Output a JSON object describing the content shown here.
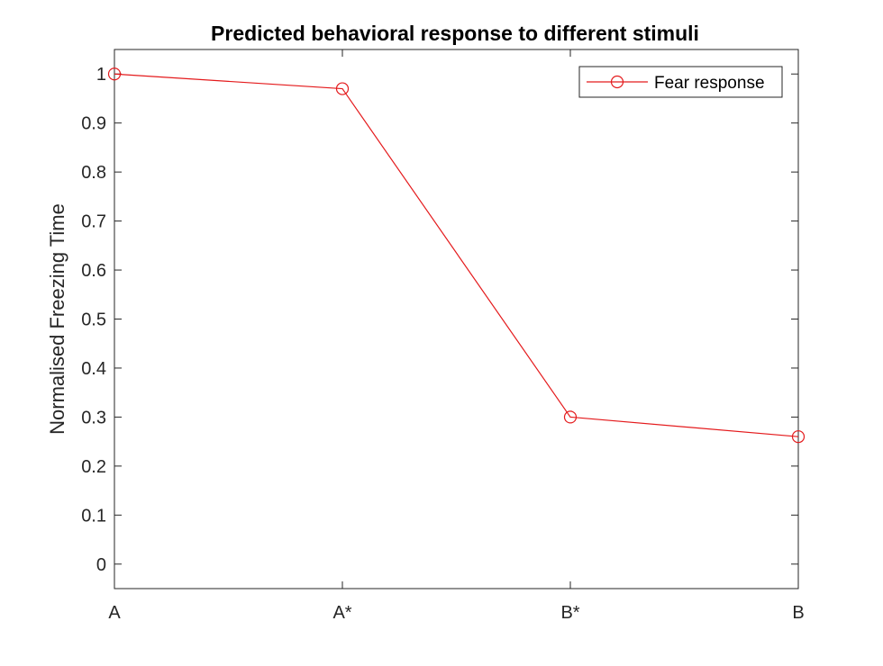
{
  "chart_data": {
    "type": "line",
    "title": "Predicted behavioral response to different stimuli",
    "xlabel": "",
    "ylabel": "Normalised Freezing Time",
    "categories": [
      "A",
      "A*",
      "B*",
      "B"
    ],
    "series": [
      {
        "name": "Fear response",
        "values": [
          1.0,
          0.97,
          0.3,
          0.26
        ],
        "color": "#e41a1c",
        "marker": "circle"
      }
    ],
    "ylim": [
      -0.05,
      1.05
    ],
    "yticks": [
      0,
      0.1,
      0.2,
      0.3,
      0.4,
      0.5,
      0.6,
      0.7,
      0.8,
      0.9,
      1
    ],
    "ytick_labels": [
      "0",
      "0.1",
      "0.2",
      "0.3",
      "0.4",
      "0.5",
      "0.6",
      "0.7",
      "0.8",
      "0.9",
      "1"
    ],
    "grid": false,
    "legend_position": "top-right"
  }
}
